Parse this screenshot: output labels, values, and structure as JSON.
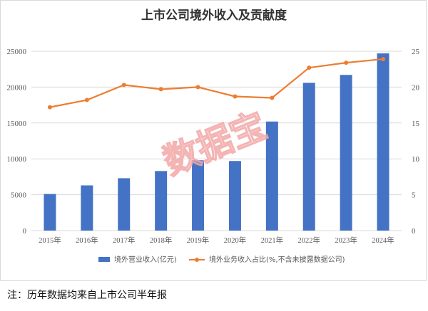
{
  "chart_data": {
    "type": "bar",
    "title": "上市公司境外收入及贡献度",
    "categories": [
      "2015年",
      "2016年",
      "2017年",
      "2018年",
      "2019年",
      "2020年",
      "2021年",
      "2022年",
      "2023年",
      "2024年"
    ],
    "series": [
      {
        "name": "境外营业收入(亿元)",
        "type": "bar",
        "axis": "left",
        "color": "#4472C4",
        "values": [
          5100,
          6300,
          7300,
          8300,
          9800,
          9700,
          15200,
          20600,
          21700,
          24700
        ]
      },
      {
        "name": "境外业务收入占比(%,不含未披露数据公司)",
        "type": "line",
        "axis": "right",
        "color": "#ED7D31",
        "values": [
          17.2,
          18.2,
          20.3,
          19.7,
          20.0,
          18.7,
          18.5,
          22.7,
          23.4,
          23.9
        ]
      }
    ],
    "y_left": {
      "ylim": [
        0,
        25000
      ],
      "ticks": [
        "0",
        "5000",
        "10000",
        "15000",
        "20000",
        "25000"
      ]
    },
    "y_right": {
      "ylim": [
        0,
        25
      ],
      "ticks": [
        "0",
        "5",
        "10",
        "15",
        "20",
        "25"
      ]
    },
    "grid": true,
    "legend": "bottom"
  },
  "watermark": "数据宝",
  "note": "注：历年数据均来自上市公司半年报"
}
